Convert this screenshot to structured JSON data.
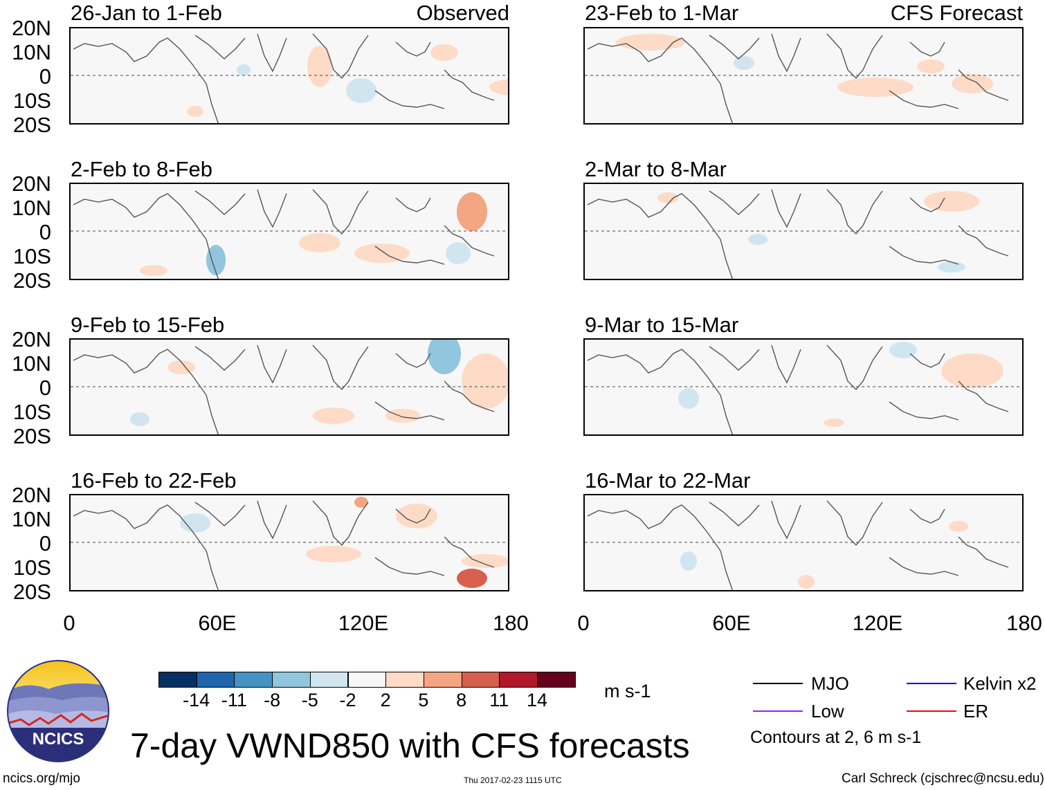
{
  "panels": [
    {
      "title": "26-Jan to 1-Feb",
      "tag": "Observed"
    },
    {
      "title": "2-Feb to 8-Feb",
      "tag": ""
    },
    {
      "title": "9-Feb to 15-Feb",
      "tag": ""
    },
    {
      "title": "16-Feb to 22-Feb",
      "tag": ""
    },
    {
      "title": "23-Feb to 1-Mar",
      "tag": "CFS Forecast"
    },
    {
      "title": "2-Mar to 8-Mar",
      "tag": ""
    },
    {
      "title": "9-Mar to 15-Mar",
      "tag": ""
    },
    {
      "title": "16-Mar to 22-Mar",
      "tag": ""
    }
  ],
  "lat_labels": [
    "20N",
    "10N",
    "0",
    "10S",
    "20S"
  ],
  "lon_labels": [
    "0",
    "60E",
    "120E",
    "180"
  ],
  "colorbar": {
    "labels": [
      "-14",
      "-11",
      "-8",
      "-5",
      "-2",
      "2",
      "5",
      "8",
      "11",
      "14"
    ],
    "colors": [
      "#053061",
      "#2166ac",
      "#4393c3",
      "#92c5de",
      "#d1e5f0",
      "#f7f7f7",
      "#fddbc7",
      "#f4a582",
      "#d6604d",
      "#b2182b",
      "#67001f"
    ],
    "units": "m s-1"
  },
  "legend": {
    "items": [
      {
        "label": "MJO",
        "color": "#000000"
      },
      {
        "label": "Kelvin x2",
        "color": "#0000ff"
      },
      {
        "label": "Low",
        "color": "#a020f0"
      },
      {
        "label": "ER",
        "color": "#ff0000"
      }
    ],
    "note": "Contours at 2, 6 m s-1"
  },
  "title": "7-day VWND850 with CFS forecasts",
  "logo_text": "NCICS",
  "footer": {
    "url": "ncics.org/mjo",
    "timestamp": "Thu 2017-02-23 1115 UTC",
    "credit": "Carl Schreck (cjschrec@ncsu.edu)"
  }
}
